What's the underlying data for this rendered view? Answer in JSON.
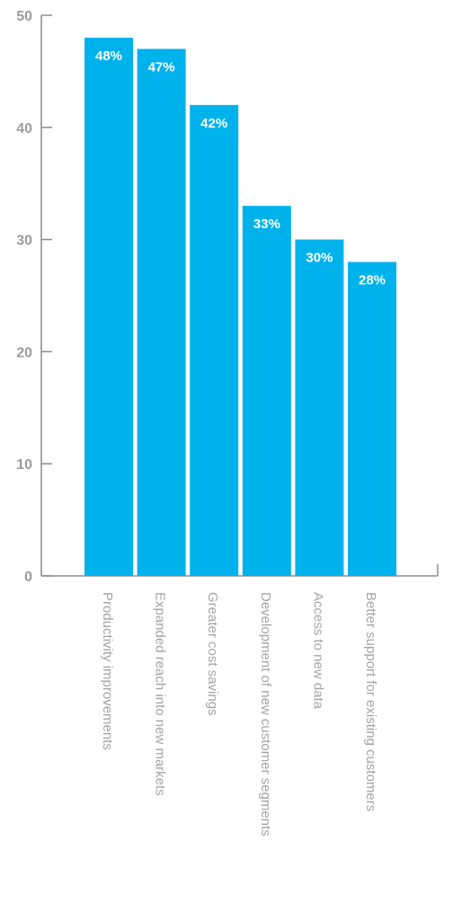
{
  "chart_data": {
    "type": "bar",
    "categories": [
      "Productivity improvements",
      "Expanded reach into new markets",
      "Greater cost savings",
      "Development of new customer segments",
      "Access to new data",
      "Better support for existing customers"
    ],
    "values": [
      48,
      47,
      42,
      33,
      30,
      28
    ],
    "data_labels": [
      "48%",
      "47%",
      "42%",
      "33%",
      "30%",
      "28%"
    ],
    "yticks": [
      0,
      10,
      20,
      30,
      40,
      50
    ],
    "ylim": [
      0,
      50
    ],
    "title": "",
    "xlabel": "",
    "ylabel": "",
    "grid": false,
    "bar_color": "#00b2ec",
    "axis_color": "#8c8c8c",
    "text_color": "#9b9b9b"
  }
}
